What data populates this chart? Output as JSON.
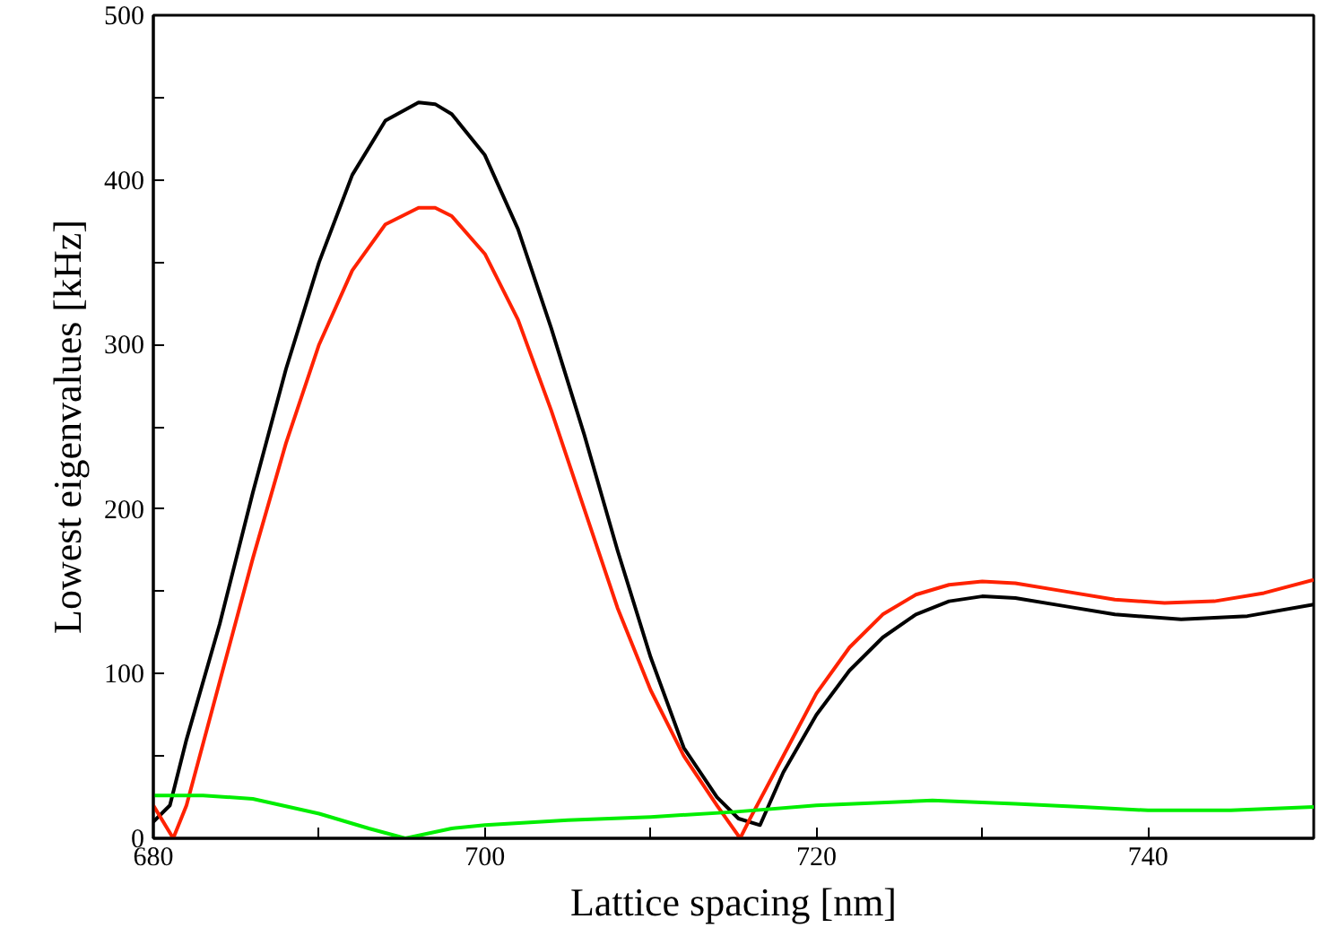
{
  "chart_data": {
    "type": "line",
    "xlabel": "Lattice spacing [nm]",
    "ylabel": "Lowest eigenvalues [kHz]",
    "xlim": [
      680,
      750
    ],
    "ylim": [
      0,
      500
    ],
    "xticks": [
      680,
      {
        "value": 690,
        "label": null
      },
      700,
      {
        "value": 710,
        "label": null
      },
      720,
      {
        "value": 730,
        "label": null
      },
      740,
      {
        "value": 750,
        "label": null
      }
    ],
    "yticks": [
      0,
      {
        "value": 50,
        "label": null
      },
      100,
      {
        "value": 150,
        "label": null
      },
      200,
      {
        "value": 250,
        "label": null
      },
      300,
      {
        "value": 350,
        "label": null
      },
      400,
      {
        "value": 450,
        "label": null
      },
      500
    ],
    "grid": false,
    "series": [
      {
        "color": "#000000",
        "x": [
          680,
          681,
          682,
          684,
          686,
          688,
          690,
          692,
          694,
          696,
          697,
          698,
          700,
          702,
          704,
          706,
          708,
          710,
          712,
          714,
          715.3,
          716.6,
          718,
          720,
          722,
          724,
          726,
          728,
          730,
          732,
          735,
          738,
          742,
          746,
          750
        ],
        "values": [
          10,
          20,
          60,
          130,
          210,
          285,
          350,
          403,
          436,
          447,
          446,
          440,
          415,
          370,
          310,
          245,
          175,
          110,
          55,
          25,
          12,
          8,
          40,
          75,
          102,
          122,
          136,
          144,
          147,
          146,
          141,
          136,
          133,
          135,
          142
        ]
      },
      {
        "color": "#ff2200",
        "x": [
          680,
          681.2,
          682,
          684,
          686,
          688,
          690,
          692,
          694,
          696,
          697,
          698,
          700,
          702,
          704,
          706,
          708,
          710,
          712,
          714,
          715.4,
          716,
          718,
          720,
          722,
          724,
          726,
          728,
          730,
          732,
          735,
          738,
          741,
          744,
          747,
          750
        ],
        "values": [
          20,
          0,
          20,
          95,
          170,
          240,
          300,
          345,
          373,
          383,
          383,
          378,
          355,
          315,
          260,
          200,
          140,
          90,
          50,
          20,
          0,
          12,
          50,
          88,
          116,
          136,
          148,
          154,
          156,
          155,
          150,
          145,
          143,
          144,
          149,
          157
        ]
      },
      {
        "color": "#00ee00",
        "x": [
          680,
          683,
          686,
          690,
          693,
          695.2,
          698,
          700,
          705,
          710,
          715,
          720,
          727,
          732,
          736,
          740,
          745,
          750
        ],
        "values": [
          26,
          26,
          24,
          15,
          6,
          0,
          6,
          8,
          11,
          13,
          16,
          20,
          23,
          21,
          19,
          17,
          17,
          19
        ]
      }
    ]
  }
}
